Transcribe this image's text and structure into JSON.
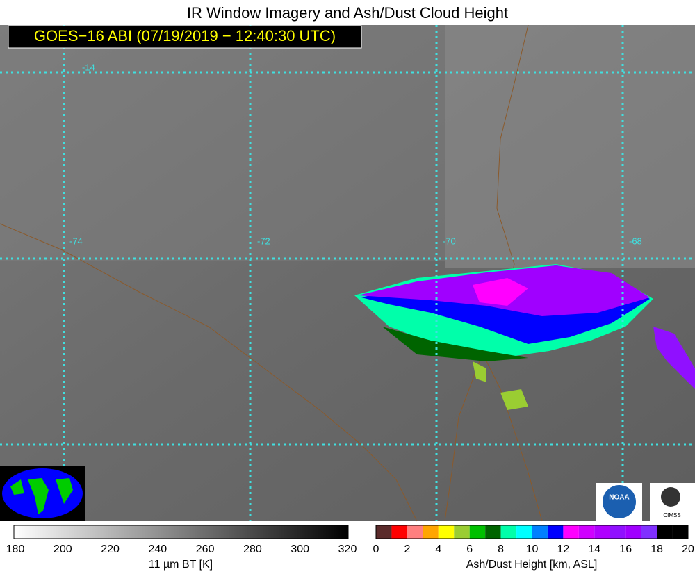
{
  "header": {
    "title": "IR Window Imagery and Ash/Dust Cloud Height",
    "subtitle": "GOES−16 ABI (07/19/2019 − 12:40:30 UTC)"
  },
  "map": {
    "lat_labels": [
      "-14"
    ],
    "lon_labels": [
      "-74",
      "-72",
      "-70",
      "-68"
    ],
    "logo_text": [
      "NOAA",
      "CIMSS"
    ]
  },
  "colorbar_bt": {
    "label": "11 µm BT [K]",
    "ticks": [
      180,
      200,
      220,
      240,
      260,
      280,
      300,
      320
    ]
  },
  "colorbar_ash": {
    "label": "Ash/Dust Height [km, ASL]",
    "ticks": [
      0,
      2,
      4,
      6,
      8,
      10,
      12,
      14,
      16,
      18,
      20
    ],
    "colors": [
      "#5b2b2b",
      "#ff0000",
      "#ff7f7f",
      "#ffa500",
      "#ffff00",
      "#9acd32",
      "#00c000",
      "#006400",
      "#00ffaa",
      "#00ffff",
      "#0080ff",
      "#0000ff",
      "#ff00ff",
      "#d000ff",
      "#b000ff",
      "#9010ff",
      "#a000ff",
      "#8030ff",
      "#000000",
      "#000000"
    ]
  }
}
